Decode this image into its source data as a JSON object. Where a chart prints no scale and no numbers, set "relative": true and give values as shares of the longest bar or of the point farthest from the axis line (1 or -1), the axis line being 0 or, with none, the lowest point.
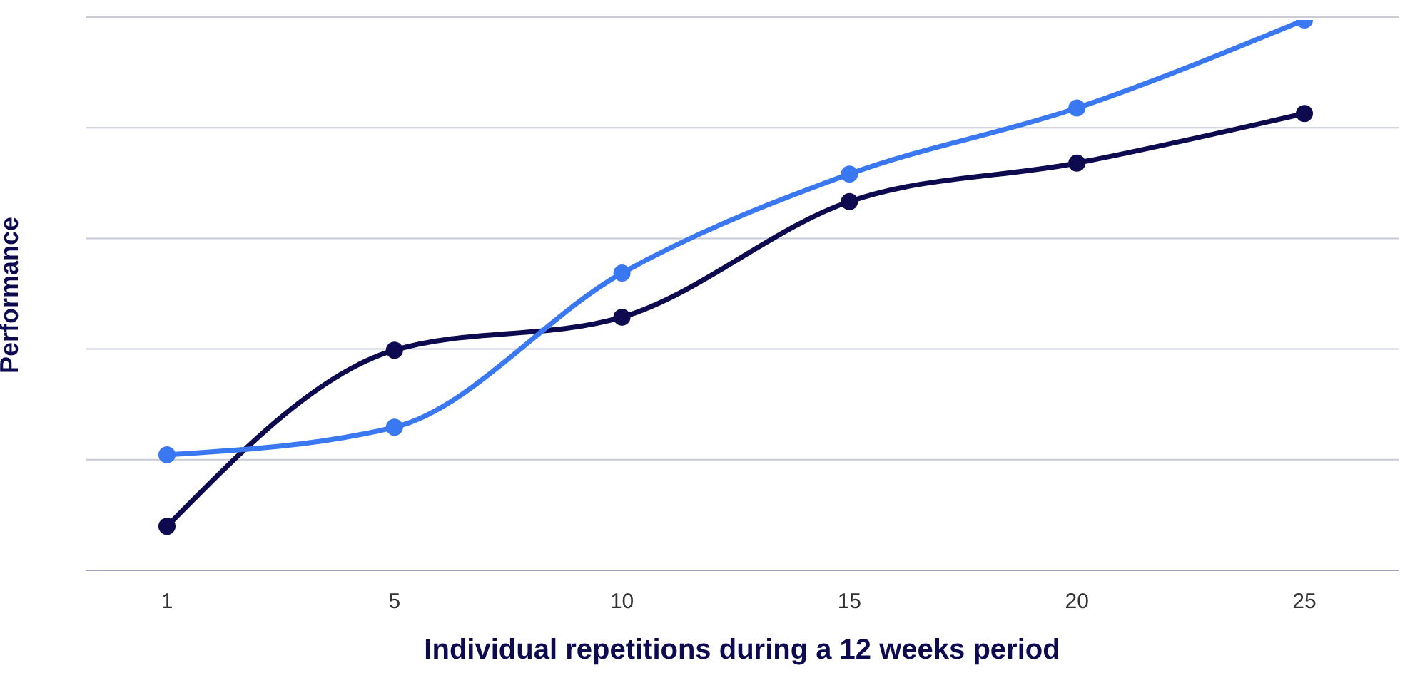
{
  "chart_data": {
    "type": "line",
    "relative": true,
    "xlabel": "Individual repetitions during a 12 weeks period",
    "ylabel": "Performance",
    "categories": [
      "1",
      "5",
      "10",
      "15",
      "20",
      "25"
    ],
    "series": [
      {
        "color": "#0d0a4f",
        "values": [
          0.08,
          0.4,
          0.46,
          0.67,
          0.74,
          0.83
        ]
      },
      {
        "color": "#3a78f2",
        "values": [
          0.21,
          0.26,
          0.54,
          0.72,
          0.84,
          1
        ]
      }
    ],
    "grid": "y",
    "marker": "circle"
  }
}
